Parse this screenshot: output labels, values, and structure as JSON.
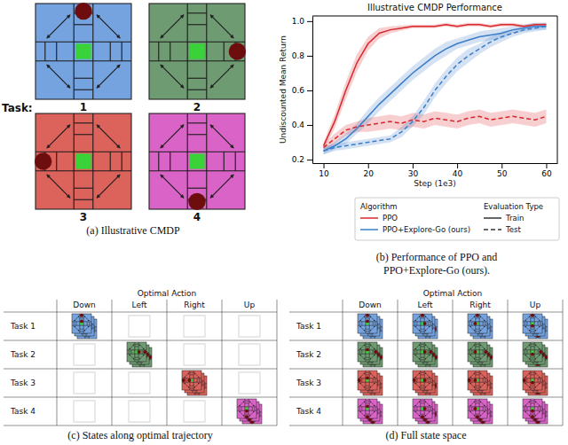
{
  "chart_data": {
    "type": "line",
    "title": "Illustrative CMDP Performance",
    "x_label": "Step (1e3)",
    "y_label": "Undiscounted Mean Return",
    "x": [
      10,
      12.5,
      15,
      17.5,
      20,
      22.5,
      25,
      27.5,
      30,
      32.5,
      35,
      37.5,
      40,
      42.5,
      45,
      47.5,
      50,
      52.5,
      55,
      57.5,
      60
    ],
    "series": [
      {
        "algorithm": "PPO",
        "evaluation": "Train",
        "color": "#d9262b",
        "line_style": "solid",
        "values": [
          0.28,
          0.42,
          0.6,
          0.76,
          0.87,
          0.93,
          0.95,
          0.96,
          0.97,
          0.97,
          0.97,
          0.98,
          0.97,
          0.98,
          0.98,
          0.97,
          0.98,
          0.98,
          0.97,
          0.98,
          0.98
        ],
        "error": [
          0.02,
          0.04,
          0.05,
          0.05,
          0.04,
          0.03,
          0.02,
          0.015,
          0.01,
          0.01,
          0.01,
          0.01,
          0.01,
          0.01,
          0.01,
          0.01,
          0.01,
          0.01,
          0.01,
          0.01,
          0.01
        ]
      },
      {
        "algorithm": "PPO",
        "evaluation": "Test",
        "color": "#d9262b",
        "line_style": "dashed",
        "values": [
          0.27,
          0.32,
          0.37,
          0.39,
          0.4,
          0.41,
          0.42,
          0.41,
          0.43,
          0.42,
          0.44,
          0.43,
          0.42,
          0.44,
          0.45,
          0.43,
          0.44,
          0.45,
          0.44,
          0.43,
          0.45
        ],
        "error": [
          0.02,
          0.03,
          0.03,
          0.03,
          0.04,
          0.04,
          0.04,
          0.04,
          0.04,
          0.04,
          0.04,
          0.04,
          0.04,
          0.04,
          0.04,
          0.04,
          0.04,
          0.04,
          0.04,
          0.04,
          0.04
        ]
      },
      {
        "algorithm": "PPO+Explore-Go (ours)",
        "evaluation": "Train",
        "color": "#3a7dc9",
        "line_style": "solid",
        "values": [
          0.25,
          0.28,
          0.32,
          0.38,
          0.45,
          0.52,
          0.58,
          0.64,
          0.7,
          0.75,
          0.8,
          0.84,
          0.87,
          0.89,
          0.91,
          0.92,
          0.93,
          0.95,
          0.96,
          0.97,
          0.97
        ],
        "error": [
          0.02,
          0.02,
          0.03,
          0.03,
          0.04,
          0.04,
          0.04,
          0.04,
          0.04,
          0.04,
          0.04,
          0.04,
          0.03,
          0.03,
          0.03,
          0.03,
          0.03,
          0.02,
          0.02,
          0.02,
          0.02
        ]
      },
      {
        "algorithm": "PPO+Explore-Go (ours)",
        "evaluation": "Test",
        "color": "#3a7dc9",
        "line_style": "dashed",
        "values": [
          0.25,
          0.27,
          0.28,
          0.29,
          0.3,
          0.31,
          0.32,
          0.36,
          0.42,
          0.5,
          0.6,
          0.68,
          0.75,
          0.8,
          0.84,
          0.88,
          0.91,
          0.93,
          0.95,
          0.96,
          0.97
        ],
        "error": [
          0.02,
          0.02,
          0.02,
          0.02,
          0.02,
          0.02,
          0.02,
          0.03,
          0.03,
          0.04,
          0.04,
          0.04,
          0.04,
          0.04,
          0.03,
          0.03,
          0.03,
          0.02,
          0.02,
          0.02,
          0.02
        ]
      }
    ],
    "xlim": [
      7.5,
      62.5
    ],
    "xticks": [
      10,
      20,
      30,
      40,
      50,
      60
    ],
    "ylim": [
      0.18,
      1.03
    ],
    "yticks": [
      0.2,
      0.4,
      0.6,
      0.8,
      {
        "value": 1,
        "label": "1.0"
      }
    ],
    "grid": false,
    "legend": "bottom",
    "legend_groups": [
      {
        "title": "Algorithm",
        "entries": [
          "PPO",
          "PPO+Explore-Go (ours)"
        ]
      },
      {
        "title": "Evaluation Type",
        "entries": [
          "Train",
          "Test"
        ]
      }
    ]
  },
  "panels": {
    "a": {
      "caption": "(a) Illustrative CMDP",
      "task_label": "Task:",
      "tasks": [
        {
          "label": "1",
          "color": "#74a3df",
          "goal": "up"
        },
        {
          "label": "2",
          "color": "#6f9b72",
          "goal": "right"
        },
        {
          "label": "3",
          "color": "#dc625c",
          "goal": "left"
        },
        {
          "label": "4",
          "color": "#d963c6",
          "goal": "down"
        }
      ]
    },
    "b": {
      "caption_lines": [
        "(b) Performance of PPO and",
        "PPO+Explore-Go (ours)."
      ]
    },
    "c": {
      "header": "Optimal Action",
      "columns": [
        "Down",
        "Left",
        "Right",
        "Up"
      ],
      "rows": [
        "Task 1",
        "Task 2",
        "Task 3",
        "Task 4"
      ],
      "filled": [
        [
          true,
          false,
          false,
          false
        ],
        [
          false,
          true,
          false,
          false
        ],
        [
          false,
          false,
          true,
          false
        ],
        [
          false,
          false,
          false,
          true
        ]
      ],
      "caption": "(c) States along optimal trajectory"
    },
    "d": {
      "header": "Optimal Action",
      "columns": [
        "Down",
        "Left",
        "Right",
        "Up"
      ],
      "rows": [
        "Task 1",
        "Task 2",
        "Task 3",
        "Task 4"
      ],
      "filled": [
        [
          true,
          true,
          true,
          true
        ],
        [
          true,
          true,
          true,
          true
        ],
        [
          true,
          true,
          true,
          true
        ],
        [
          true,
          true,
          true,
          true
        ]
      ],
      "caption": "(d) Full state space"
    }
  }
}
